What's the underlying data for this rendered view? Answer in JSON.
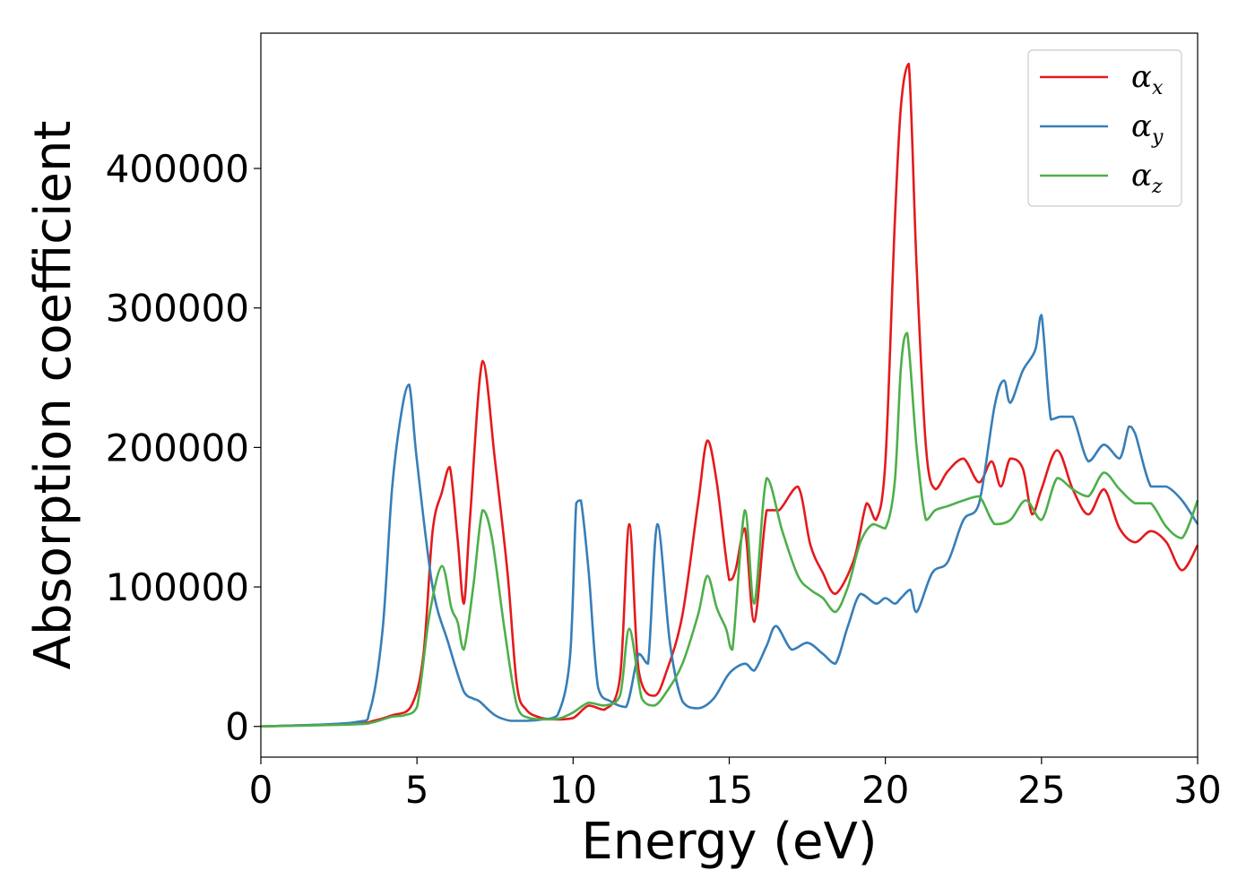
{
  "chart_data": {
    "type": "line",
    "xlabel": "Energy (eV)",
    "ylabel": "Absorption coefficient",
    "xlim": [
      0,
      30
    ],
    "ylim": [
      -22000,
      497000
    ],
    "xticks": [
      0,
      5,
      10,
      15,
      20,
      25,
      30
    ],
    "yticks": [
      0,
      100000,
      200000,
      300000,
      400000
    ],
    "legend_placement": "top-right",
    "grid": false,
    "series": [
      {
        "name": "αx",
        "base": "α",
        "sub": "x",
        "color": "#e41a1c",
        "x": [
          0,
          3,
          3.6,
          4.2,
          4.8,
          5.2,
          5.5,
          5.8,
          6.05,
          6.3,
          6.5,
          6.7,
          7.1,
          7.5,
          7.9,
          8.2,
          8.5,
          9,
          9.5,
          10,
          10.5,
          11,
          11.5,
          11.8,
          12.1,
          12.6,
          13,
          13.5,
          14,
          14.3,
          14.6,
          15,
          15.2,
          15.5,
          15.8,
          16.2,
          16.6,
          17.2,
          17.6,
          18,
          18.4,
          19,
          19.4,
          19.7,
          20,
          20.3,
          20.5,
          20.75,
          21,
          21.3,
          21.6,
          22,
          22.5,
          23,
          23.4,
          23.7,
          24,
          24.4,
          24.7,
          25,
          25.5,
          26,
          26.5,
          27,
          27.5,
          28,
          28.5,
          29,
          29.5,
          30
        ],
        "y": [
          0,
          2000,
          4000,
          8000,
          14000,
          50000,
          140000,
          168000,
          186000,
          135000,
          88000,
          150000,
          262000,
          190000,
          110000,
          30000,
          12000,
          6000,
          5000,
          6000,
          15000,
          12000,
          35000,
          145000,
          40000,
          22000,
          40000,
          80000,
          160000,
          205000,
          175000,
          105000,
          112000,
          142000,
          75000,
          155000,
          155000,
          172000,
          130000,
          110000,
          95000,
          120000,
          160000,
          148000,
          190000,
          360000,
          445000,
          475000,
          330000,
          200000,
          170000,
          183000,
          192000,
          175000,
          190000,
          172000,
          192000,
          185000,
          152000,
          170000,
          198000,
          170000,
          152000,
          170000,
          142000,
          132000,
          140000,
          132000,
          112000,
          130000
        ]
      },
      {
        "name": "αy",
        "base": "α",
        "sub": "y",
        "color": "#377eb8",
        "x": [
          0,
          3,
          3.5,
          3.9,
          4.2,
          4.5,
          4.75,
          5,
          5.5,
          6,
          6.5,
          6.8,
          7,
          7.5,
          8,
          8.5,
          9,
          9.5,
          9.9,
          10.1,
          10.25,
          10.5,
          10.8,
          11.2,
          11.7,
          12.1,
          12.4,
          12.7,
          13.1,
          13.5,
          14,
          14.5,
          15,
          15.5,
          15.8,
          16.2,
          16.5,
          17,
          17.5,
          18,
          18.4,
          18.8,
          19.2,
          19.7,
          20,
          20.3,
          20.5,
          20.8,
          21,
          21.5,
          22,
          22.5,
          23,
          23.5,
          23.8,
          24,
          24.4,
          24.8,
          25,
          25.3,
          25.6,
          26,
          26.5,
          27,
          27.5,
          27.8,
          28,
          28.5,
          29,
          29.5,
          30
        ],
        "y": [
          0,
          3000,
          12000,
          70000,
          170000,
          225000,
          245000,
          190000,
          100000,
          60000,
          25000,
          20000,
          18000,
          8000,
          4000,
          4000,
          5000,
          8000,
          50000,
          160000,
          162000,
          110000,
          28000,
          18000,
          14000,
          52000,
          45000,
          145000,
          60000,
          18000,
          13000,
          20000,
          38000,
          45000,
          40000,
          58000,
          72000,
          55000,
          60000,
          52000,
          45000,
          72000,
          95000,
          88000,
          92000,
          88000,
          92000,
          98000,
          82000,
          110000,
          118000,
          148000,
          160000,
          230000,
          248000,
          232000,
          255000,
          270000,
          295000,
          220000,
          222000,
          222000,
          190000,
          202000,
          192000,
          215000,
          210000,
          172000,
          172000,
          162000,
          145000
        ]
      },
      {
        "name": "αz",
        "base": "α",
        "sub": "z",
        "color": "#4daf4a",
        "x": [
          0,
          3,
          3.6,
          4.2,
          4.6,
          5,
          5.4,
          5.8,
          6.1,
          6.3,
          6.5,
          6.8,
          7.1,
          7.4,
          7.8,
          8.2,
          8.6,
          9.2,
          9.6,
          10,
          10.5,
          11,
          11.5,
          11.8,
          12.2,
          12.6,
          13,
          13.5,
          14,
          14.3,
          14.6,
          14.9,
          15.1,
          15.5,
          15.8,
          16.2,
          16.7,
          17.2,
          17.6,
          18,
          18.4,
          18.8,
          19.2,
          19.6,
          20,
          20.3,
          20.5,
          20.7,
          21,
          21.3,
          21.6,
          22,
          22.5,
          23,
          23.5,
          24,
          24.5,
          25,
          25.5,
          26,
          26.5,
          27,
          27.5,
          28,
          28.5,
          29,
          29.5,
          30
        ],
        "y": [
          0,
          1500,
          3000,
          7000,
          8000,
          14000,
          80000,
          115000,
          85000,
          75000,
          55000,
          100000,
          155000,
          135000,
          70000,
          15000,
          6000,
          5000,
          6000,
          10000,
          17000,
          15000,
          22000,
          70000,
          20000,
          15000,
          25000,
          45000,
          80000,
          108000,
          85000,
          70000,
          55000,
          155000,
          88000,
          178000,
          140000,
          108000,
          98000,
          92000,
          82000,
          100000,
          132000,
          145000,
          142000,
          175000,
          258000,
          282000,
          200000,
          148000,
          155000,
          158000,
          162000,
          165000,
          145000,
          148000,
          162000,
          148000,
          178000,
          170000,
          165000,
          182000,
          170000,
          160000,
          160000,
          143000,
          135000,
          162000
        ]
      }
    ]
  }
}
